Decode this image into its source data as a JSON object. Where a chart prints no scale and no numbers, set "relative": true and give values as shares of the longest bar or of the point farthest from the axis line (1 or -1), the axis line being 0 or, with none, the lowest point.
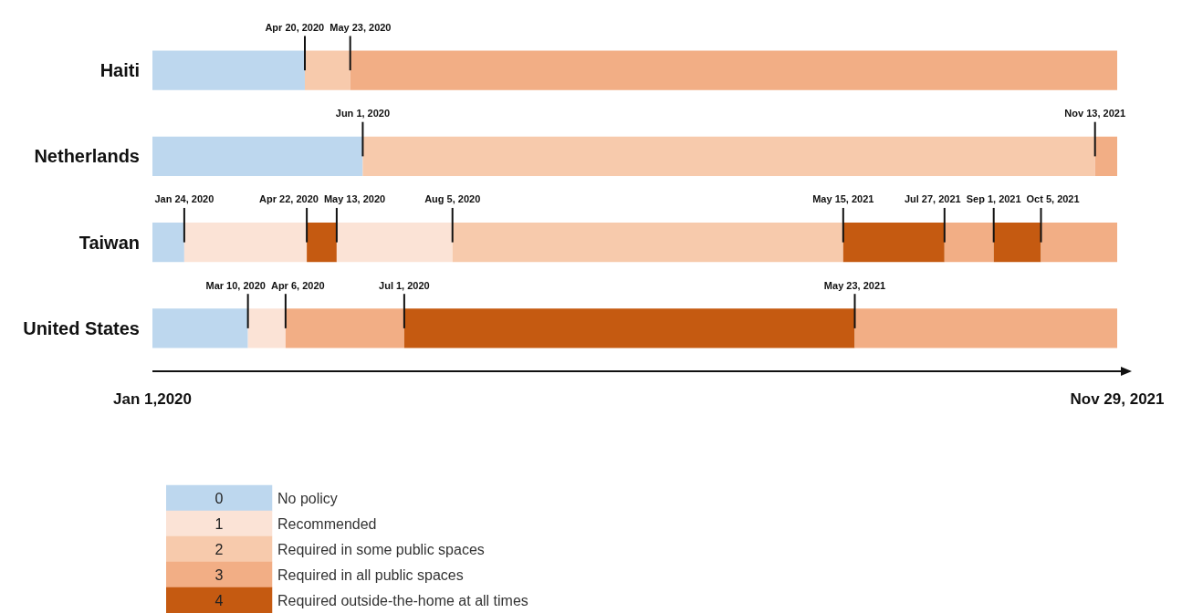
{
  "chart_data": [
    {
      "type": "bar",
      "orientation": "horizontal",
      "stacked": true,
      "relative": true,
      "categories": [
        "Haiti",
        "Netherlands",
        "Taiwan",
        "United States"
      ],
      "series": [
        {
          "values": [
            0.158,
            0.218,
            0.033,
            0.099
          ],
          "colors": [
            "#bdd7ee",
            "#bdd7ee",
            "#bdd7ee",
            "#bdd7ee"
          ]
        },
        {
          "values": [
            0.047,
            0.759,
            0.127,
            0.039
          ],
          "colors": [
            "#f7caac",
            "#f7caac",
            "#fbe3d6",
            "#fbe3d6"
          ]
        },
        {
          "values": [
            0.795,
            0.023,
            0.031,
            0.123
          ],
          "colors": [
            "#f2ae85",
            "#f2ae85",
            "#c55a11",
            "#f2ae85"
          ]
        },
        {
          "values": [
            null,
            null,
            0.12,
            0.467
          ],
          "colors": [
            null,
            null,
            "#fbe3d6",
            "#c55a11"
          ]
        },
        {
          "values": [
            null,
            null,
            0.405,
            0.272
          ],
          "colors": [
            null,
            null,
            "#f7caac",
            "#f2ae85"
          ]
        },
        {
          "values": [
            null,
            null,
            0.105,
            null
          ],
          "colors": [
            null,
            null,
            "#c55a11",
            null
          ]
        },
        {
          "values": [
            null,
            null,
            0.051,
            null
          ],
          "colors": [
            null,
            null,
            "#f2ae85",
            null
          ]
        },
        {
          "values": [
            null,
            null,
            0.049,
            null
          ],
          "colors": [
            null,
            null,
            "#c55a11",
            null
          ]
        },
        {
          "values": [
            null,
            null,
            0.079,
            null
          ],
          "colors": [
            null,
            null,
            "#f2ae85",
            null
          ]
        }
      ],
      "annotations": [
        {
          "text": "Apr 20, 2020",
          "x": 0.158,
          "y": "Haiti"
        },
        {
          "text": "May 23, 2020",
          "x": 0.205,
          "y": "Haiti"
        },
        {
          "text": "Jun 1, 2020",
          "x": 0.218,
          "y": "Netherlands"
        },
        {
          "text": "Nov 13, 2021",
          "x": 0.977,
          "y": "Netherlands"
        },
        {
          "text": "Jan 24, 2020",
          "x": 0.033,
          "y": "Taiwan"
        },
        {
          "text": "Apr 22, 2020",
          "x": 0.16,
          "y": "Taiwan"
        },
        {
          "text": "May 13, 2020",
          "x": 0.191,
          "y": "Taiwan"
        },
        {
          "text": "Aug 5, 2020",
          "x": 0.311,
          "y": "Taiwan"
        },
        {
          "text": "May 15, 2021",
          "x": 0.716,
          "y": "Taiwan"
        },
        {
          "text": "Jul 27, 2021",
          "x": 0.821,
          "y": "Taiwan"
        },
        {
          "text": "Sep 1, 2021",
          "x": 0.872,
          "y": "Taiwan"
        },
        {
          "text": "Oct 5, 2021",
          "x": 0.921,
          "y": "Taiwan"
        },
        {
          "text": "Mar 10, 2020",
          "x": 0.099,
          "y": "United States"
        },
        {
          "text": "Apr 6, 2020",
          "x": 0.138,
          "y": "United States"
        },
        {
          "text": "Jul 1, 2020",
          "x": 0.261,
          "y": "United States"
        },
        {
          "text": "May 23, 2021",
          "x": 0.728,
          "y": "United States"
        },
        "Jan 1,2020",
        "Nov 29, 2021"
      ]
    },
    {
      "type": "heatmap",
      "categories": [
        null
      ],
      "y_categories": [
        "No policy",
        "Recommended",
        "Required in some public spaces",
        "Required in all public spaces",
        "Required outside-the-home at all times"
      ],
      "cells": [
        [
          0
        ],
        [
          1
        ],
        [
          2
        ],
        [
          3
        ],
        [
          4
        ]
      ],
      "cell_labels": [
        [
          "0"
        ],
        [
          "1"
        ],
        [
          "2"
        ],
        [
          "3"
        ],
        [
          "4"
        ]
      ],
      "colors": [
        "#bdd7ee",
        "#fbe3d6",
        "#f7caac",
        "#f2ae85",
        "#c55a11"
      ]
    }
  ]
}
